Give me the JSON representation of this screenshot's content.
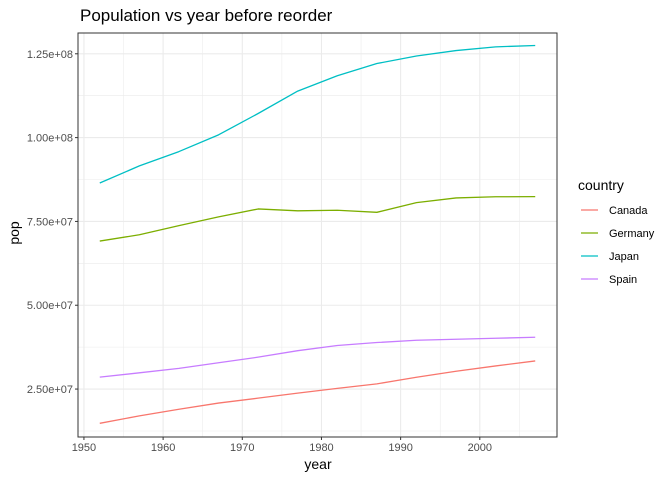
{
  "chart_data": {
    "type": "line",
    "title": "Population vs year before reorder",
    "xlabel": "year",
    "ylabel": "pop",
    "xlim": [
      1949.25,
      2009.75
    ],
    "ylim": [
      10700000,
      131200000
    ],
    "x_ticks": [
      1950,
      1960,
      1970,
      1980,
      1990,
      2000
    ],
    "x_tick_labels": [
      "1950",
      "1960",
      "1970",
      "1980",
      "1990",
      "2000"
    ],
    "y_ticks": [
      25000000,
      50000000,
      75000000,
      100000000,
      125000000
    ],
    "y_tick_labels": [
      "2.50e+07",
      "5.00e+07",
      "7.50e+07",
      "1.00e+08",
      "1.25e+08"
    ],
    "grid": true,
    "legend": {
      "title": "country",
      "position": "right"
    },
    "x": [
      1952,
      1957,
      1962,
      1967,
      1972,
      1977,
      1982,
      1987,
      1992,
      1997,
      2002,
      2007
    ],
    "series": [
      {
        "name": "Canada",
        "color": "#F8766D",
        "values": [
          14785584,
          17010154,
          18985849,
          20819767,
          22284500,
          23796400,
          25201900,
          26549700,
          28523502,
          30305843,
          31902268,
          33390141
        ]
      },
      {
        "name": "Germany",
        "color": "#7CAE00",
        "values": [
          69145952,
          71019069,
          73739117,
          76368453,
          78717088,
          78160773,
          78335266,
          77718298,
          80597764,
          82011073,
          82350671,
          82400996
        ]
      },
      {
        "name": "Japan",
        "color": "#00BFC4",
        "values": [
          86459025,
          91563009,
          95831757,
          100825279,
          107188273,
          113872473,
          118454974,
          122091325,
          124329269,
          125956499,
          127065841,
          127467972
        ]
      },
      {
        "name": "Spain",
        "color": "#C77CFF",
        "values": [
          28549870,
          29841614,
          31158061,
          32850275,
          34513161,
          36439000,
          37983310,
          38880702,
          39549438,
          39855442,
          40152517,
          40448191
        ]
      }
    ]
  }
}
